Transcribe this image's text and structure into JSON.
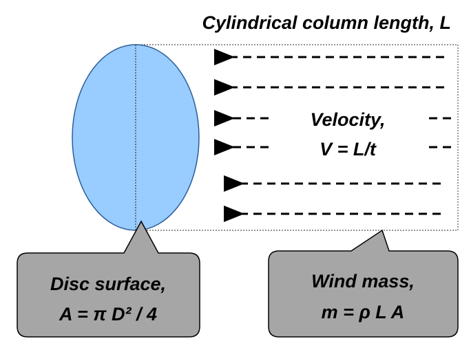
{
  "title": "Cylindrical column length, L",
  "velocity": {
    "line1": "Velocity,",
    "line2": "V = L/t"
  },
  "disc_callout": {
    "line1": "Disc surface,",
    "line2": "A = π D² / 4"
  },
  "mass_callout": {
    "line1": "Wind mass,",
    "line2": "m = ρ L A"
  }
}
